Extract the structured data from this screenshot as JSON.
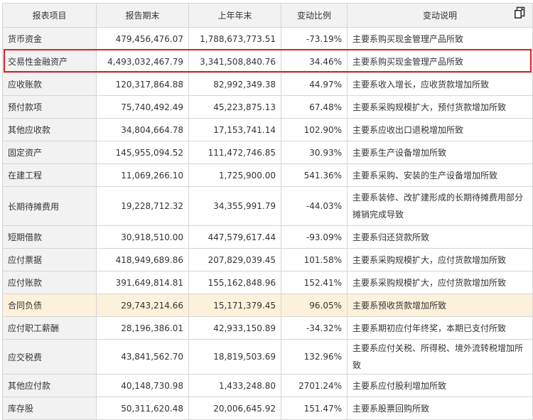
{
  "header": [
    "报表项目",
    "报告期末",
    "上年年末",
    "变动比例",
    "变动说明"
  ],
  "rows": [
    [
      "货币资金",
      "479,456,476.07",
      "1,788,673,773.51",
      "-73.19%",
      "主要系购买现金管理产品所致"
    ],
    [
      "交易性金融资产",
      "4,493,032,467.79",
      "3,341,508,840.76",
      "34.46%",
      "主要系购买现金管理产品所致"
    ],
    [
      "应收账款",
      "120,317,864.88",
      "82,992,349.38",
      "44.97%",
      "主要系收入增长，应收货款增加所致"
    ],
    [
      "预付款项",
      "75,740,492.49",
      "45,223,875.13",
      "67.48%",
      "主要系采购规模扩大，预付货款增加所致"
    ],
    [
      "其他应收款",
      "34,804,664.78",
      "17,153,741.14",
      "102.90%",
      "主要系应收出口退税增加所致"
    ],
    [
      "固定资产",
      "145,955,094.52",
      "111,472,746.85",
      "30.93%",
      "主要系生产设备增加所致"
    ],
    [
      "在建工程",
      "11,069,266.10",
      "1,725,900.00",
      "541.36%",
      "主要系采购、安装的生产设备增加所致"
    ],
    [
      "长期待摊费用",
      "19,228,712.32",
      "34,355,991.79",
      "-44.03%",
      "主要系装修、改扩建形成的长期待摊费用部分摊销完成导致"
    ],
    [
      "短期借款",
      "30,918,510.00",
      "447,579,617.44",
      "-93.09%",
      "主要系归还贷款所致"
    ],
    [
      "应付票据",
      "418,949,689.86",
      "207,829,039.45",
      "101.58%",
      "主要系采购规模扩大，应付货款增加所致"
    ],
    [
      "应付账款",
      "391,649,814.81",
      "155,162,848.96",
      "152.41%",
      "主要系采购规模扩大，应付货款增加所致"
    ],
    [
      "合同负债",
      "29,743,214.66",
      "15,171,379.45",
      "96.05%",
      "主要系预收货款增加所致"
    ],
    [
      "应付职工薪酬",
      "28,196,386.01",
      "42,933,150.89",
      "-34.32%",
      "主要系期初应付年终奖，本期已支付所致"
    ],
    [
      "应交税费",
      "43,841,562.70",
      "18,819,503.69",
      "132.96%",
      "主要系应付关税、所得税、境外流转税增加所致"
    ],
    [
      "其他应付款",
      "40,148,730.98",
      "1,433,248.80",
      "2701.24%",
      "主要系应付股利增加所致"
    ],
    [
      "库存股",
      "50,311,620.48",
      "20,006,645.92",
      "151.47%",
      "主要系股票回购所致"
    ]
  ],
  "highlight_row_index": 11,
  "boxed_row_index": 1,
  "colors": {
    "highlight_bg": "#fdf1db",
    "box_border": "#e0201f",
    "label_bg": "#f2f2f2"
  },
  "icons": {
    "toolbar": "copy-icon"
  }
}
